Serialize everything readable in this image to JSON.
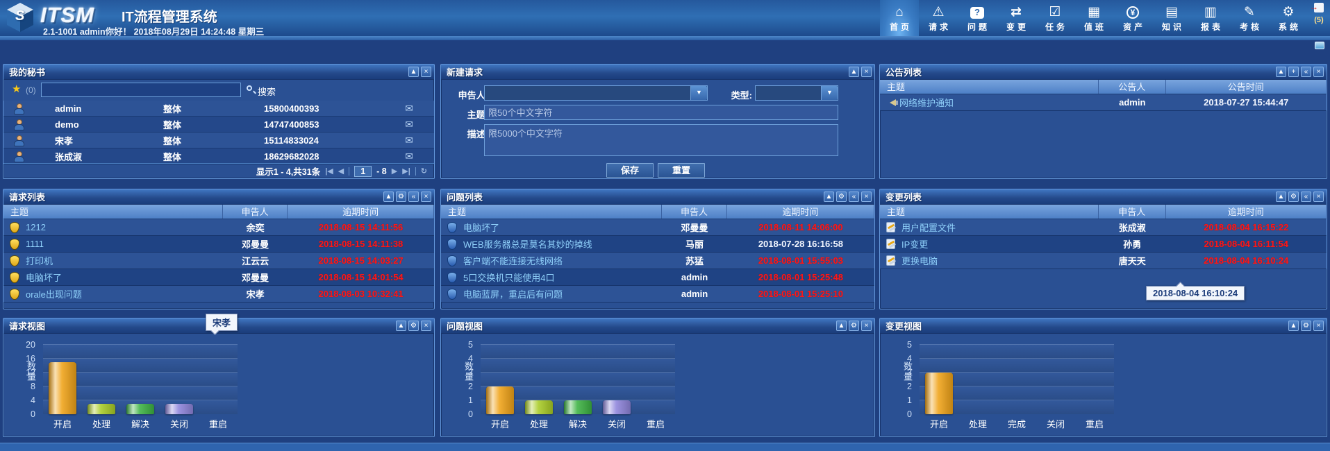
{
  "app": {
    "logo": "ITSM",
    "title": "IT流程管理系统",
    "subtitle": "2.1-1001 admin你好！ 2018年08月29日 14:24:48 星期三",
    "logout_badge": "(5)",
    "nav": [
      {
        "id": "home",
        "label": "首页",
        "icon": "home",
        "active": true
      },
      {
        "id": "request",
        "label": "请求",
        "icon": "warning",
        "active": false
      },
      {
        "id": "problem",
        "label": "问题",
        "icon": "question",
        "active": false
      },
      {
        "id": "change",
        "label": "变更",
        "icon": "change",
        "active": false
      },
      {
        "id": "task",
        "label": "任务",
        "icon": "task",
        "active": false
      },
      {
        "id": "duty",
        "label": "值班",
        "icon": "duty",
        "active": false
      },
      {
        "id": "asset",
        "label": "资产",
        "icon": "asset",
        "active": false
      },
      {
        "id": "knowledge",
        "label": "知识",
        "icon": "knowledge",
        "active": false
      },
      {
        "id": "report",
        "label": "报表",
        "icon": "report",
        "active": false
      },
      {
        "id": "exam",
        "label": "考核",
        "icon": "exam",
        "active": false
      },
      {
        "id": "system",
        "label": "系统",
        "icon": "system",
        "active": false
      }
    ]
  },
  "nav_glyphs": {
    "home": "⌂",
    "warning": "⚠",
    "question": "?",
    "change": "⇄",
    "task": "☑",
    "duty": "▦",
    "asset": "¥",
    "knowledge": "▤",
    "report": "▥",
    "exam": "✎",
    "system": "⚙"
  },
  "icons": {
    "collapse": "▲",
    "settings": "⚙",
    "dock": "«",
    "close": "×",
    "add": "+",
    "first": "|◀",
    "prev": "◀",
    "next": "▶",
    "last": "▶|",
    "refresh": "↻",
    "mail": "✉",
    "star": "★",
    "dropdown": "▼"
  },
  "colors": {
    "overdue_red": "#ff1717",
    "link_blue": "#8fd0fa",
    "header_blue": "#2f6fb4",
    "panel_blue": "#2a5093"
  },
  "panels": {
    "secretary": {
      "title": "我的秘书",
      "buttons": [
        "collapse",
        "close"
      ],
      "fav_count": "(0)",
      "search_label": "搜索",
      "contacts": [
        {
          "name": "admin",
          "scope": "整体",
          "phone": "15800400393"
        },
        {
          "name": "demo",
          "scope": "整体",
          "phone": "14747400853"
        },
        {
          "name": "宋孝",
          "scope": "整体",
          "phone": "15114833024"
        },
        {
          "name": "张成淑",
          "scope": "整体",
          "phone": "18629682028"
        }
      ],
      "page_info": "显示1 - 4,共31条",
      "page_value": "1",
      "page_total": "- 8"
    },
    "new_request": {
      "title": "新建请求",
      "buttons": [
        "collapse",
        "close"
      ],
      "reporter_label": "申告人:",
      "type_label": "类型:",
      "subject_label": "主题:",
      "desc_label": "描述:",
      "subject_placeholder": "限50个中文字符",
      "desc_placeholder": "限5000个中文字符",
      "save_label": "保存",
      "reset_label": "重置"
    },
    "announcements": {
      "title": "公告列表",
      "buttons": [
        "collapse",
        "add",
        "dock",
        "close"
      ],
      "table": {
        "columns": [
          "主题",
          "公告人",
          "公告时间"
        ],
        "widths": [
          49,
          15,
          36
        ],
        "rows": [
          {
            "subject": "网络维护通知",
            "reporter": "admin",
            "time": "2018-07-27 15:44:47",
            "overdue": false
          }
        ]
      }
    },
    "requests": {
      "title": "请求列表",
      "buttons": [
        "collapse",
        "settings",
        "dock",
        "close"
      ],
      "table": {
        "columns": [
          "主题",
          "申告人",
          "逾期时间"
        ],
        "widths": [
          51,
          15,
          34
        ],
        "rows": [
          {
            "subject": "1212",
            "reporter": "余奕",
            "time": "2018-08-15 14:11:56",
            "overdue": true
          },
          {
            "subject": "1111",
            "reporter": "邓曼曼",
            "time": "2018-08-15 14:11:38",
            "overdue": true
          },
          {
            "subject": "打印机",
            "reporter": "江云云",
            "time": "2018-08-15 14:03:27",
            "overdue": true
          },
          {
            "subject": "电脑坏了",
            "reporter": "邓曼曼",
            "time": "2018-08-15 14:01:54",
            "overdue": true
          },
          {
            "subject": "orale出现问题",
            "reporter": "宋孝",
            "time": "2018-08-03 10:32:41",
            "overdue": true
          }
        ]
      }
    },
    "problems": {
      "title": "问题列表",
      "buttons": [
        "collapse",
        "settings",
        "dock",
        "close"
      ],
      "table": {
        "columns": [
          "主题",
          "申告人",
          "逾期时间"
        ],
        "widths": [
          51,
          15,
          34
        ],
        "rows": [
          {
            "subject": "电脑坏了",
            "reporter": "邓曼曼",
            "time": "2018-08-11 14:06:00",
            "overdue": true
          },
          {
            "subject": "WEB服务器总是莫名其妙的掉线",
            "reporter": "马丽",
            "time": "2018-07-28 16:16:58",
            "overdue": false
          },
          {
            "subject": "客户端不能连接无线网络",
            "reporter": "苏猛",
            "time": "2018-08-01 15:55:03",
            "overdue": true
          },
          {
            "subject": "5口交换机只能使用4口",
            "reporter": "admin",
            "time": "2018-08-01 15:25:48",
            "overdue": true
          },
          {
            "subject": "电脑蓝屏，重启后有问题",
            "reporter": "admin",
            "time": "2018-08-01 15:25:10",
            "overdue": true
          }
        ]
      }
    },
    "changes": {
      "title": "变更列表",
      "buttons": [
        "collapse",
        "settings",
        "dock",
        "close"
      ],
      "tooltip": "2018-08-04 16:10:24",
      "table": {
        "columns": [
          "主题",
          "申告人",
          "逾期时间"
        ],
        "widths": [
          49,
          15,
          36
        ],
        "rows": [
          {
            "subject": "用户配置文件",
            "reporter": "张成淑",
            "time": "2018-08-04 16:15:22",
            "overdue": true
          },
          {
            "subject": "IP变更",
            "reporter": "孙勇",
            "time": "2018-08-04 16:11:54",
            "overdue": true
          },
          {
            "subject": "更换电脑",
            "reporter": "唐天天",
            "time": "2018-08-04 16:10:24",
            "overdue": true
          }
        ]
      }
    },
    "request_view": {
      "title": "请求视图",
      "buttons": [
        "collapse",
        "settings",
        "close"
      ],
      "tooltip": "宋孝"
    },
    "problem_view": {
      "title": "问题视图",
      "buttons": [
        "collapse",
        "settings",
        "close"
      ]
    },
    "change_view": {
      "title": "变更视图",
      "buttons": [
        "collapse",
        "settings",
        "close"
      ]
    }
  },
  "chart_data": [
    {
      "type": "bar",
      "title": "请求视图",
      "ylabel": "数量",
      "xlabel": "",
      "categories": [
        "开启",
        "处理",
        "解决",
        "关闭",
        "重启"
      ],
      "values": [
        15,
        3,
        3,
        3,
        0
      ],
      "ylim": [
        0,
        20
      ],
      "yticks": [
        0,
        4,
        8,
        12,
        16,
        20
      ],
      "grid": true,
      "legend": "none",
      "colors": [
        "#f0a318",
        "#a9cc26",
        "#3db343",
        "#8f85dc",
        "#8f85dc"
      ]
    },
    {
      "type": "bar",
      "title": "问题视图",
      "ylabel": "数量",
      "xlabel": "",
      "categories": [
        "开启",
        "处理",
        "解决",
        "关闭",
        "重启"
      ],
      "values": [
        2,
        1,
        1,
        1,
        0
      ],
      "ylim": [
        0,
        5
      ],
      "yticks": [
        0,
        1,
        2,
        3,
        4,
        5
      ],
      "grid": true,
      "legend": "none",
      "colors": [
        "#f0a318",
        "#a9cc26",
        "#3db343",
        "#8f85dc",
        "#8f85dc"
      ]
    },
    {
      "type": "bar",
      "title": "变更视图",
      "ylabel": "数量",
      "xlabel": "",
      "categories": [
        "开启",
        "处理",
        "完成",
        "关闭",
        "重启"
      ],
      "values": [
        3,
        0,
        0,
        0,
        0
      ],
      "ylim": [
        0,
        5
      ],
      "yticks": [
        0,
        1,
        2,
        3,
        4,
        5
      ],
      "grid": true,
      "legend": "none",
      "colors": [
        "#f0a318",
        "#a9cc26",
        "#3db343",
        "#8f85dc",
        "#8f85dc"
      ]
    }
  ]
}
